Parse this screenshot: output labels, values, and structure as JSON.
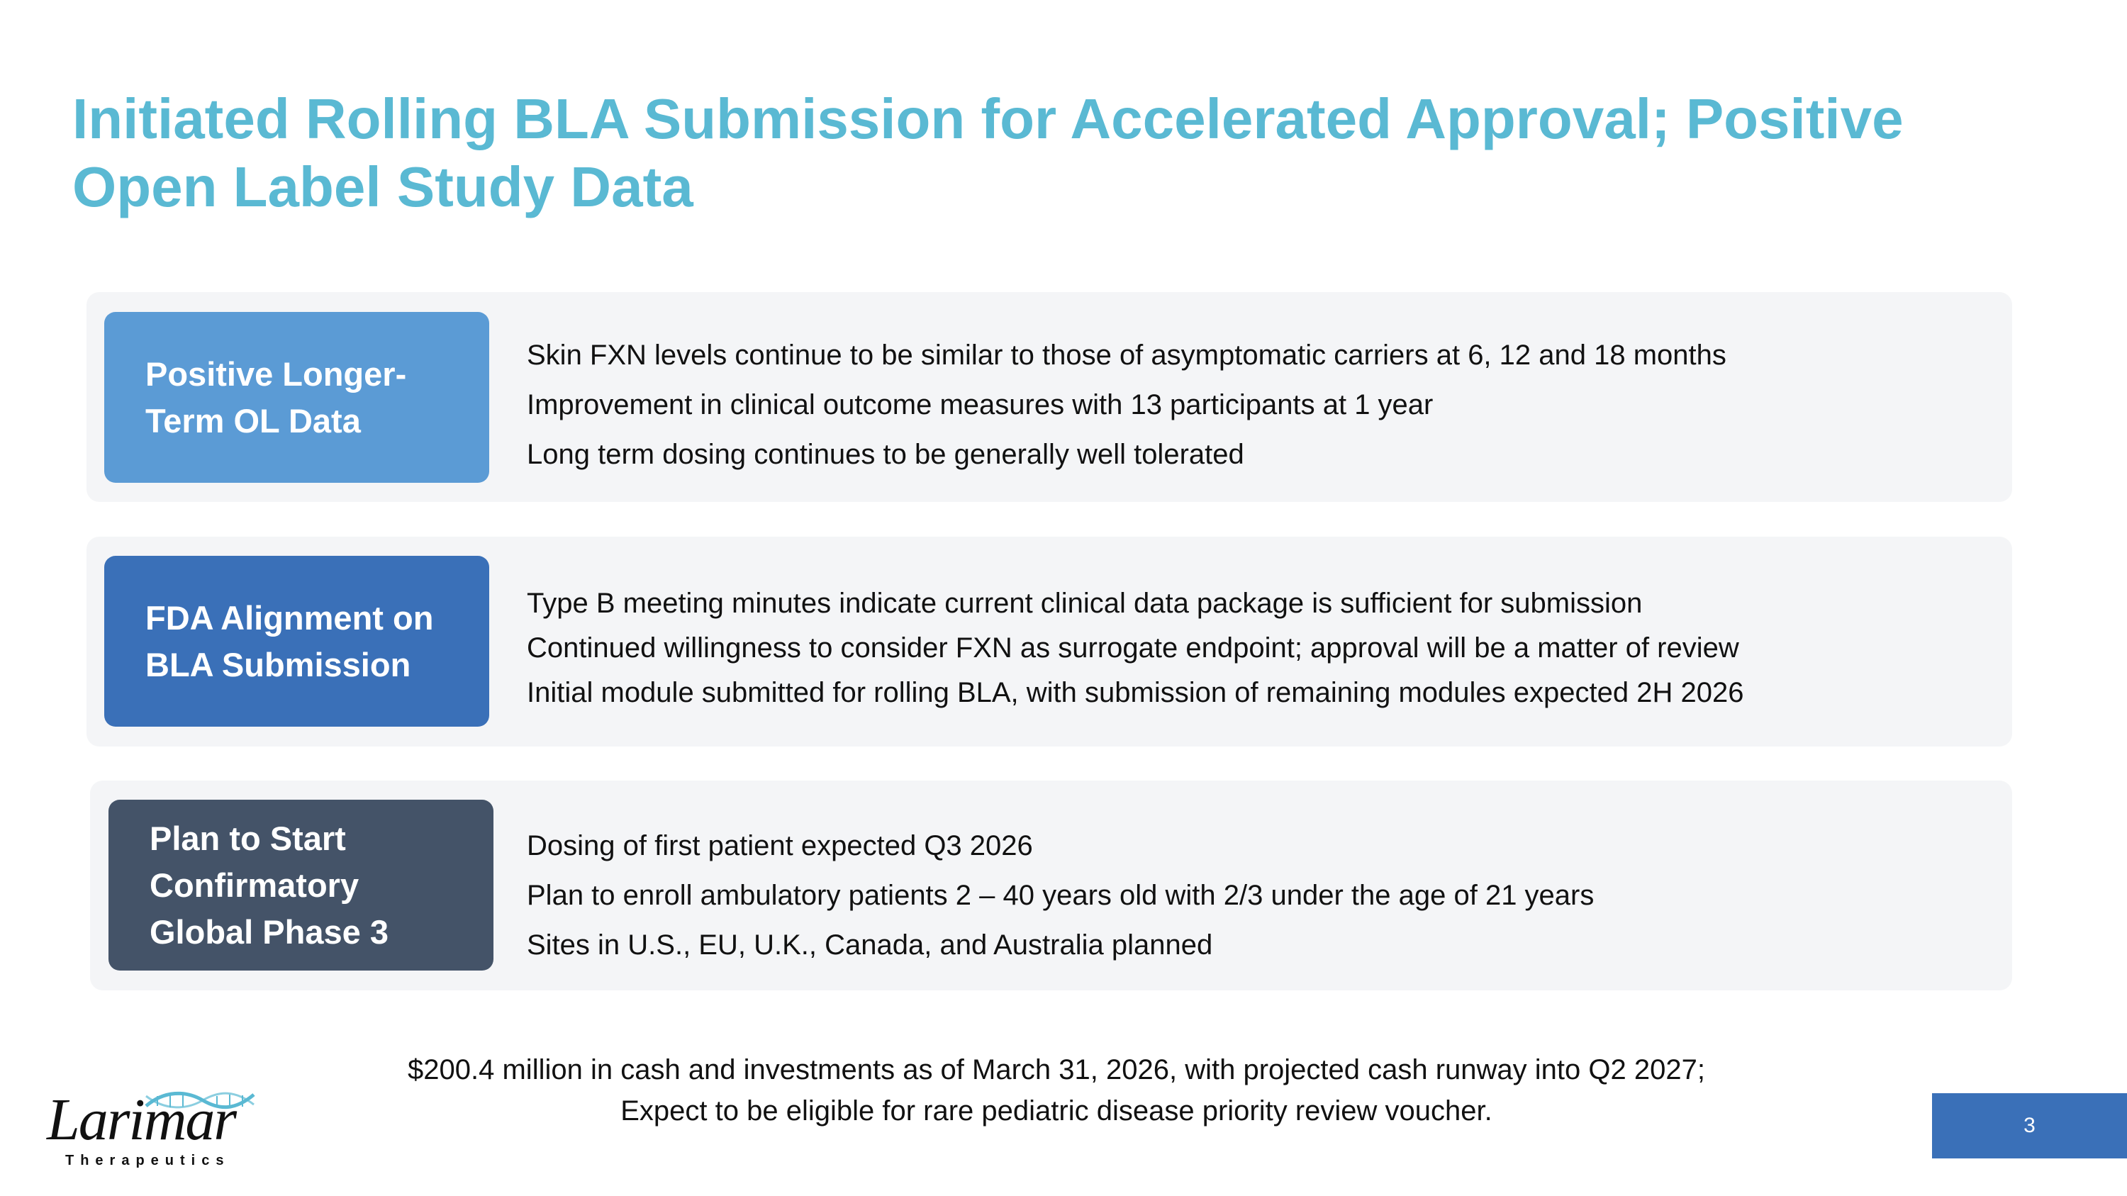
{
  "title": "Initiated Rolling BLA Submission for Accelerated Approval; Positive Open Label Study Data",
  "sections": [
    {
      "label_lines": [
        "Positive Longer-",
        "Term OL Data"
      ],
      "label_color": "#5b9bd5",
      "bullets": [
        "Skin FXN levels continue to be similar to those of asymptomatic carriers at 6, 12 and 18 months",
        "Improvement in clinical outcome measures with 13 participants at 1 year",
        "Long term dosing continues to be generally well tolerated"
      ]
    },
    {
      "label_lines": [
        "FDA Alignment on",
        "BLA Submission"
      ],
      "label_color": "#3a70b8",
      "bullets": [
        "Type B meeting minutes indicate current clinical data package is sufficient for submission",
        "Continued willingness to consider FXN as surrogate endpoint; approval will be a matter of review",
        "Initial module submitted for rolling BLA, with submission of remaining modules expected 2H 2026"
      ]
    },
    {
      "label_lines": [
        "Plan to Start",
        "Confirmatory",
        "Global Phase 3"
      ],
      "label_color": "#445368",
      "bullets": [
        "Dosing of first patient expected Q3 2026",
        "Plan to enroll ambulatory patients 2 – 40 years old with 2/3 under the age of 21 years",
        "Sites in U.S., EU, U.K., Canada, and Australia planned"
      ]
    }
  ],
  "footer": {
    "line1": "$200.4 million in cash and investments as of March 31, 2026, with projected cash runway into Q2 2027;",
    "line2": "Expect to be eligible for rare pediatric disease priority review voucher."
  },
  "logo": {
    "name": "Larimar",
    "sub": "Therapeutics",
    "helix_color": "#5ab9d3"
  },
  "page_number": "3",
  "colors": {
    "title": "#5ab9d3",
    "panel_bg": "#f4f5f7",
    "page_badge": "#3a70b8"
  }
}
